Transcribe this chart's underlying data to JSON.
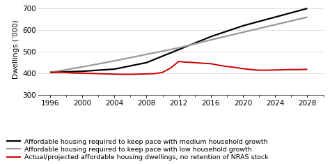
{
  "title": "",
  "ylabel": "Dwellings (’000)",
  "xlabel": "",
  "ylim": [
    300,
    720
  ],
  "yticks": [
    300,
    400,
    500,
    600,
    700
  ],
  "xlim": [
    1994.5,
    2030
  ],
  "xticks": [
    1996,
    2000,
    2004,
    2008,
    2012,
    2016,
    2020,
    2024,
    2028
  ],
  "medium_growth": {
    "x": [
      1996,
      2000,
      2004,
      2008,
      2012,
      2016,
      2020,
      2024,
      2028
    ],
    "y": [
      405,
      410,
      420,
      450,
      510,
      570,
      620,
      660,
      700
    ],
    "color": "#000000",
    "linewidth": 1.6,
    "label": "Affordable housing required to keep pace with medium household growth"
  },
  "low_growth": {
    "x": [
      1996,
      2000,
      2004,
      2008,
      2012,
      2016,
      2020,
      2024,
      2028
    ],
    "y": [
      405,
      430,
      458,
      488,
      518,
      555,
      590,
      625,
      660
    ],
    "color": "#999999",
    "linewidth": 1.6,
    "label": "Affordable housing required to keep pace with low household growth"
  },
  "actual": {
    "x": [
      1996,
      1997,
      1998,
      1999,
      2000,
      2001,
      2002,
      2003,
      2004,
      2005,
      2006,
      2007,
      2008,
      2009,
      2010,
      2011,
      2012,
      2013,
      2014,
      2015,
      2016,
      2017,
      2018,
      2019,
      2020,
      2021,
      2022,
      2023,
      2024,
      2025,
      2026,
      2027,
      2028
    ],
    "y": [
      405,
      406,
      404,
      402,
      401,
      400,
      399,
      398,
      397,
      396,
      396,
      397,
      398,
      399,
      405,
      425,
      455,
      452,
      450,
      447,
      445,
      438,
      432,
      428,
      422,
      418,
      415,
      415,
      416,
      417,
      418,
      418,
      419
    ],
    "color": "#cc0000",
    "linewidth": 1.4,
    "label": "Actual/projected affordable housing dwellings, no retention of NRAS stock"
  },
  "legend_fontsize": 6.8,
  "tick_fontsize": 7.5,
  "ylabel_fontsize": 7.5,
  "background_color": "#ffffff",
  "grid_color": "#d0d0d0"
}
